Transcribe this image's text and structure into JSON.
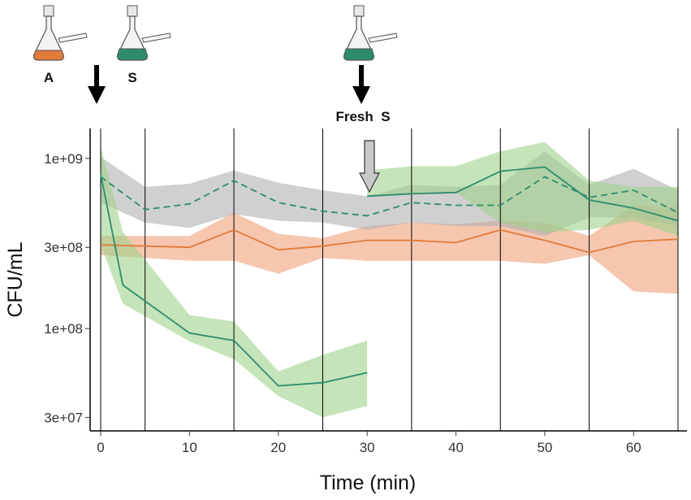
{
  "chart_data": {
    "type": "line",
    "xlabel": "Time (min)",
    "ylabel": "CFU/mL",
    "yscale": "log",
    "xlim": [
      -1,
      65
    ],
    "ylim": [
      25000000,
      1500000000
    ],
    "x_ticks": [
      0,
      10,
      20,
      30,
      40,
      50,
      60
    ],
    "x_tick_labels": [
      "0",
      "10",
      "20",
      "30",
      "40",
      "50",
      "60"
    ],
    "y_ticks": [
      30000000,
      100000000,
      300000000,
      1000000000
    ],
    "y_tick_labels": [
      "3e+07",
      "1e+08",
      "3e+08",
      "1e+09"
    ],
    "vertical_lines": [
      0,
      5,
      15,
      25,
      35,
      45,
      55,
      65
    ],
    "annotations": {
      "flask_a_label": "A",
      "flask_s_label": "S",
      "fresh_s_label": "Fresh  S",
      "fresh_s_time": 30
    },
    "series": [
      {
        "name": "A (orange)",
        "color": "#e07b39",
        "band_color": "#f0a07a",
        "dashed": false,
        "x": [
          0,
          10,
          15,
          20,
          25,
          30,
          35,
          40,
          45,
          50,
          55,
          60,
          65
        ],
        "y": [
          310000000,
          300000000,
          380000000,
          290000000,
          305000000,
          330000000,
          330000000,
          320000000,
          380000000,
          330000000,
          280000000,
          325000000,
          335000000
        ],
        "lower": [
          270000000,
          250000000,
          250000000,
          210000000,
          260000000,
          250000000,
          250000000,
          250000000,
          250000000,
          240000000,
          270000000,
          165000000,
          160000000
        ],
        "upper": [
          350000000,
          350000000,
          480000000,
          360000000,
          340000000,
          400000000,
          420000000,
          410000000,
          430000000,
          420000000,
          350000000,
          530000000,
          520000000
        ]
      },
      {
        "name": "S (gray band, dashed)",
        "color": "#2d8c6e",
        "band_color": "#b0b0b0",
        "dashed": true,
        "x": [
          0,
          5,
          10,
          15,
          20,
          25,
          30,
          35,
          40,
          45,
          50,
          55,
          60,
          65
        ],
        "y": [
          780000000,
          500000000,
          540000000,
          740000000,
          550000000,
          490000000,
          460000000,
          550000000,
          530000000,
          530000000,
          780000000,
          590000000,
          650000000,
          480000000
        ],
        "lower": [
          550000000,
          420000000,
          390000000,
          470000000,
          430000000,
          420000000,
          380000000,
          420000000,
          400000000,
          400000000,
          350000000,
          450000000,
          450000000,
          400000000
        ],
        "upper": [
          1020000000,
          680000000,
          710000000,
          850000000,
          720000000,
          650000000,
          600000000,
          700000000,
          680000000,
          700000000,
          1100000000,
          700000000,
          870000000,
          650000000
        ]
      },
      {
        "name": "S decline (green)",
        "color": "#2d8c6e",
        "band_color": "#9ed28a",
        "dashed": false,
        "x": [
          0,
          2.5,
          10,
          15,
          20,
          25,
          30
        ],
        "y": [
          810000000,
          180000000,
          94000000,
          85000000,
          46000000,
          48000000,
          55000000
        ],
        "lower": [
          310000000,
          140000000,
          84000000,
          66000000,
          40000000,
          30000000,
          35000000
        ],
        "upper": [
          1170000000,
          370000000,
          120000000,
          110000000,
          56000000,
          70000000,
          85000000
        ]
      },
      {
        "name": "Fresh S (green)",
        "color": "#2d8c6e",
        "band_color": "#9ed28a",
        "dashed": false,
        "x": [
          30,
          35,
          40,
          45,
          50,
          55,
          60,
          65
        ],
        "y": [
          600000000,
          620000000,
          630000000,
          840000000,
          890000000,
          570000000,
          510000000,
          430000000
        ],
        "lower": [
          600000000,
          620000000,
          630000000,
          420000000,
          370000000,
          380000000,
          430000000,
          350000000
        ],
        "upper": [
          850000000,
          900000000,
          900000000,
          1100000000,
          1250000000,
          740000000,
          680000000,
          680000000
        ]
      }
    ]
  }
}
